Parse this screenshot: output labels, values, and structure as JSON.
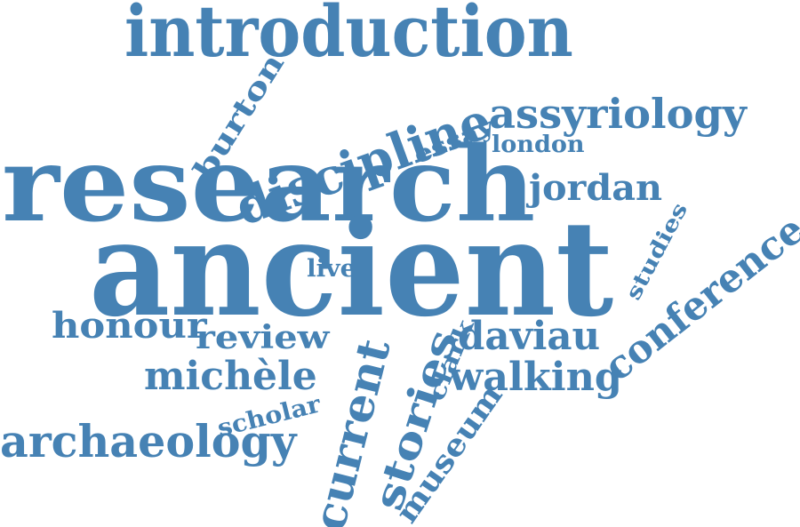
{
  "colors": {
    "word": "#4682B4",
    "background": "#ffffff"
  },
  "words": [
    "introduction",
    "discipline",
    "burton",
    "essay",
    "assyriology",
    "london",
    "research",
    "jordan",
    "studies",
    "ancient",
    "live",
    "conference",
    "honour",
    "review",
    "current",
    "stories",
    "clark",
    "daviau",
    "michèle",
    "walking",
    "scholar",
    "archaeology",
    "museum"
  ]
}
